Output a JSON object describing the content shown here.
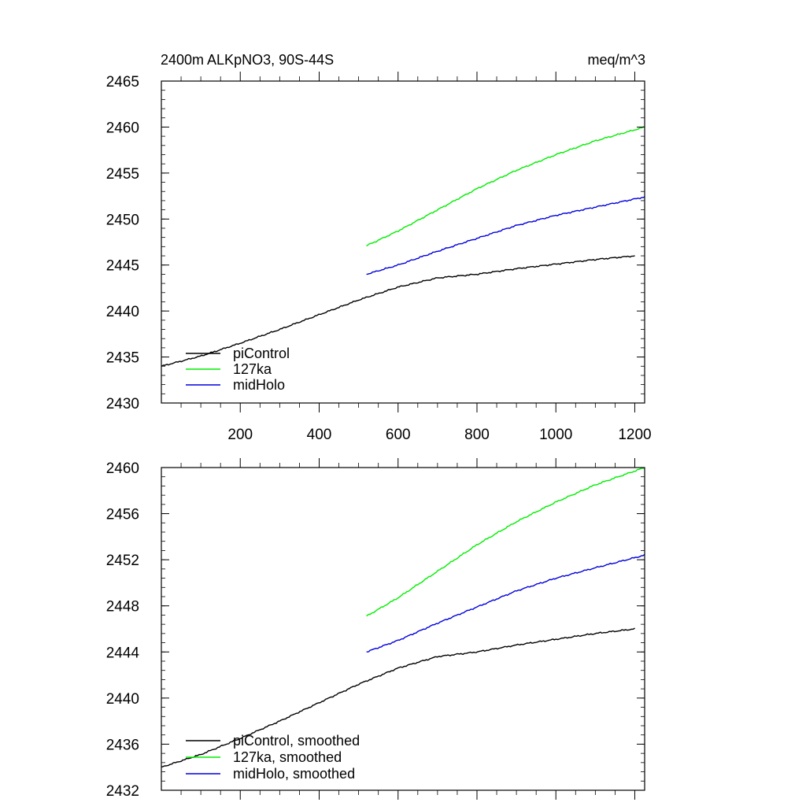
{
  "chart_data": [
    {
      "type": "line",
      "title": "2400m ALKpNO3, 90S-44S",
      "units": "meq/m^3",
      "xlim": [
        0,
        1225
      ],
      "ylim": [
        2430,
        2465
      ],
      "xticks": [
        200,
        400,
        600,
        800,
        1000,
        1200
      ],
      "yticks": [
        2430,
        2435,
        2440,
        2445,
        2450,
        2455,
        2460,
        2465
      ],
      "xtick_labels": [
        "200",
        "400",
        "600",
        "800",
        "1000",
        "1200"
      ],
      "ytick_labels": [
        "2430",
        "2435",
        "2440",
        "2445",
        "2450",
        "2455",
        "2460",
        "2465"
      ],
      "legend_location": "bottom-left",
      "series": [
        {
          "name": "piControl",
          "color": "#000000",
          "x": [
            0,
            100,
            200,
            300,
            400,
            500,
            600,
            700,
            800,
            900,
            1000,
            1100,
            1200
          ],
          "y": [
            2434.0,
            2435.1,
            2436.5,
            2438.0,
            2439.6,
            2441.2,
            2442.6,
            2443.6,
            2444.0,
            2444.6,
            2445.1,
            2445.6,
            2446.0
          ]
        },
        {
          "name": "127ka",
          "color": "#00ee00",
          "x": [
            520,
            600,
            700,
            800,
            900,
            1000,
            1100,
            1225
          ],
          "y": [
            2447.1,
            2448.7,
            2451.0,
            2453.3,
            2455.3,
            2457.0,
            2458.5,
            2460.0
          ]
        },
        {
          "name": "midHolo",
          "color": "#0000dd",
          "x": [
            520,
            600,
            700,
            800,
            900,
            1000,
            1100,
            1225
          ],
          "y": [
            2444.0,
            2445.0,
            2446.5,
            2447.9,
            2449.3,
            2450.4,
            2451.3,
            2452.4
          ]
        }
      ]
    },
    {
      "type": "line",
      "xlim": [
        0,
        1225
      ],
      "ylim": [
        2432,
        2460
      ],
      "xticks": [
        200,
        400,
        600,
        800,
        1000,
        1200
      ],
      "yticks": [
        2432,
        2436,
        2440,
        2444,
        2448,
        2452,
        2456,
        2460
      ],
      "ytick_labels": [
        "2432",
        "2436",
        "2440",
        "2444",
        "2448",
        "2452",
        "2456",
        "2460"
      ],
      "legend_location": "bottom-left",
      "series": [
        {
          "name": "piControl, smoothed",
          "color": "#000000",
          "x": [
            0,
            100,
            200,
            300,
            400,
            500,
            600,
            700,
            800,
            900,
            1000,
            1100,
            1200
          ],
          "y": [
            2434.0,
            2435.1,
            2436.5,
            2438.0,
            2439.6,
            2441.2,
            2442.6,
            2443.6,
            2444.0,
            2444.6,
            2445.1,
            2445.6,
            2446.0
          ]
        },
        {
          "name": "127ka, smoothed",
          "color": "#00ee00",
          "x": [
            520,
            600,
            700,
            800,
            900,
            1000,
            1100,
            1225
          ],
          "y": [
            2447.1,
            2448.7,
            2451.0,
            2453.3,
            2455.3,
            2457.0,
            2458.5,
            2460.0
          ]
        },
        {
          "name": "midHolo, smoothed",
          "color": "#0000dd",
          "x": [
            520,
            600,
            700,
            800,
            900,
            1000,
            1100,
            1225
          ],
          "y": [
            2444.0,
            2445.0,
            2446.5,
            2447.9,
            2449.3,
            2450.4,
            2451.3,
            2452.4
          ]
        }
      ]
    }
  ]
}
